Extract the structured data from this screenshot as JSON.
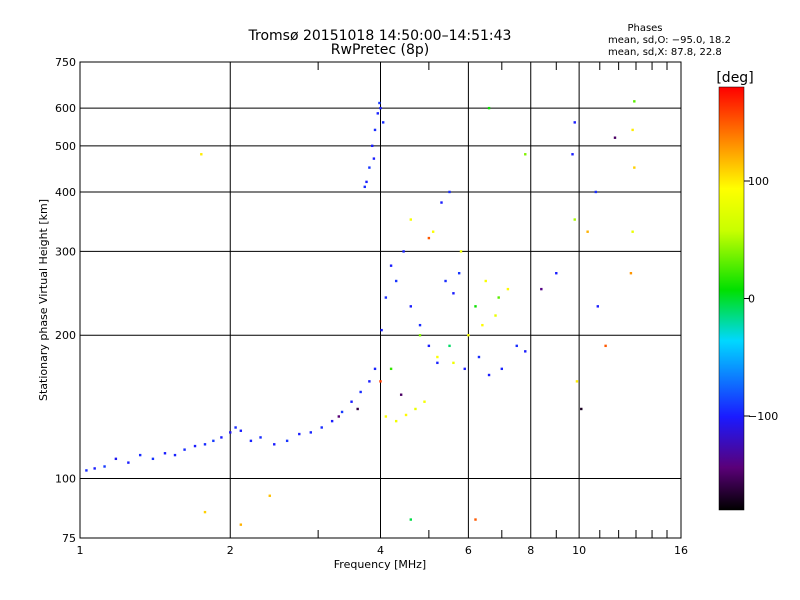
{
  "chart_data": {
    "type": "scatter",
    "title": "Tromsø 20151018 14:50:00–14:51:43",
    "subtitle": "RwPretec (8p)",
    "xlabel": "Frequency [MHz]",
    "ylabel": "Stationary phase Virtual Height [km]",
    "x_scale": "log",
    "y_scale": "log",
    "xlim": [
      1,
      16
    ],
    "ylim": [
      75,
      750
    ],
    "grid": true,
    "x_major_ticks": [
      {
        "value": 1,
        "label": "1"
      },
      {
        "value": 2,
        "label": "2"
      },
      {
        "value": 4,
        "label": "4"
      },
      {
        "value": 6,
        "label": "6"
      },
      {
        "value": 8,
        "label": "8"
      },
      {
        "value": 10,
        "label": "10"
      },
      {
        "value": 16,
        "label": "16"
      }
    ],
    "x_minor_ticks": [
      3,
      5,
      7,
      9,
      11,
      12,
      13,
      14,
      15
    ],
    "y_major_ticks": [
      {
        "value": 75,
        "label": "75"
      },
      {
        "value": 100,
        "label": "100"
      },
      {
        "value": 200,
        "label": "200"
      },
      {
        "value": 300,
        "label": "300"
      },
      {
        "value": 400,
        "label": "400"
      },
      {
        "value": 500,
        "label": "500"
      },
      {
        "value": 600,
        "label": "600"
      },
      {
        "value": 750,
        "label": "750"
      }
    ],
    "phase_legend": {
      "heading": "Phases",
      "line1": "mean, sd,O: −95.0, 18.2",
      "line2": "mean, sd,X:  87.8, 22.8"
    },
    "colorbar": {
      "label": "[deg]",
      "min": -180,
      "max": 180,
      "ticks": [
        {
          "value": 100,
          "label": "100"
        },
        {
          "value": 0,
          "label": "0"
        },
        {
          "value": -100,
          "label": "−100"
        }
      ]
    },
    "points": [
      [
        1.03,
        104,
        -95
      ],
      [
        1.07,
        105,
        -100
      ],
      [
        1.12,
        106,
        -90
      ],
      [
        1.18,
        110,
        -105
      ],
      [
        1.25,
        108,
        -100
      ],
      [
        1.32,
        112,
        -95
      ],
      [
        1.4,
        110,
        -92
      ],
      [
        1.48,
        113,
        -100
      ],
      [
        1.55,
        112,
        -98
      ],
      [
        1.62,
        115,
        -95
      ],
      [
        1.7,
        117,
        -100
      ],
      [
        1.78,
        118,
        -95
      ],
      [
        1.85,
        120,
        -90
      ],
      [
        1.92,
        122,
        -100
      ],
      [
        2.0,
        125,
        -105
      ],
      [
        2.05,
        128,
        -95
      ],
      [
        2.1,
        126,
        -100
      ],
      [
        2.2,
        120,
        -98
      ],
      [
        2.3,
        122,
        -95
      ],
      [
        2.45,
        118,
        -100
      ],
      [
        2.6,
        120,
        -92
      ],
      [
        2.75,
        124,
        -100
      ],
      [
        2.9,
        125,
        -97
      ],
      [
        3.05,
        128,
        -95
      ],
      [
        3.2,
        132,
        -100
      ],
      [
        3.35,
        138,
        -90
      ],
      [
        3.5,
        145,
        -100
      ],
      [
        3.65,
        152,
        -95
      ],
      [
        3.8,
        160,
        -100
      ],
      [
        3.9,
        170,
        -98
      ],
      [
        3.72,
        410,
        -95
      ],
      [
        3.75,
        420,
        -100
      ],
      [
        3.8,
        450,
        -92
      ],
      [
        3.85,
        500,
        -100
      ],
      [
        3.9,
        540,
        -95
      ],
      [
        3.95,
        585,
        -98
      ],
      [
        4.0,
        600,
        -100
      ],
      [
        4.05,
        560,
        -95
      ],
      [
        3.88,
        470,
        -100
      ],
      [
        3.98,
        615,
        -90
      ],
      [
        4.02,
        205,
        -100
      ],
      [
        4.1,
        240,
        -95
      ],
      [
        4.2,
        280,
        -100
      ],
      [
        4.3,
        260,
        -92
      ],
      [
        4.45,
        300,
        -98
      ],
      [
        4.6,
        230,
        -100
      ],
      [
        4.8,
        210,
        -95
      ],
      [
        5.0,
        190,
        -100
      ],
      [
        5.2,
        175,
        -98
      ],
      [
        5.4,
        260,
        -95
      ],
      [
        5.6,
        245,
        -100
      ],
      [
        5.75,
        270,
        -92
      ],
      [
        5.9,
        170,
        -100
      ],
      [
        6.3,
        180,
        -95
      ],
      [
        6.6,
        165,
        -100
      ],
      [
        7.0,
        170,
        -98
      ],
      [
        7.5,
        190,
        -95
      ],
      [
        7.8,
        185,
        -100
      ],
      [
        5.5,
        400,
        -95
      ],
      [
        5.3,
        380,
        -100
      ],
      [
        4.1,
        135,
        90
      ],
      [
        4.3,
        132,
        85
      ],
      [
        4.5,
        136,
        95
      ],
      [
        4.7,
        140,
        80
      ],
      [
        4.9,
        145,
        88
      ],
      [
        5.2,
        180,
        92
      ],
      [
        5.6,
        175,
        85
      ],
      [
        6.0,
        200,
        90
      ],
      [
        6.4,
        210,
        95
      ],
      [
        6.8,
        220,
        80
      ],
      [
        4.6,
        350,
        88
      ],
      [
        5.1,
        330,
        92
      ],
      [
        5.8,
        300,
        85
      ],
      [
        6.5,
        260,
        90
      ],
      [
        7.2,
        250,
        95
      ],
      [
        4.2,
        170,
        20
      ],
      [
        4.8,
        200,
        40
      ],
      [
        5.5,
        190,
        -10
      ],
      [
        6.2,
        230,
        10
      ],
      [
        6.9,
        240,
        30
      ],
      [
        4.0,
        160,
        160
      ],
      [
        4.4,
        150,
        -150
      ],
      [
        5.0,
        320,
        150
      ],
      [
        3.6,
        140,
        -160
      ],
      [
        3.3,
        135,
        -145
      ],
      [
        9.8,
        560,
        -100
      ],
      [
        10.8,
        400,
        -95
      ],
      [
        11.8,
        520,
        -150
      ],
      [
        12.9,
        620,
        30
      ],
      [
        12.8,
        540,
        100
      ],
      [
        12.9,
        450,
        110
      ],
      [
        10.4,
        330,
        120
      ],
      [
        10.9,
        230,
        -100
      ],
      [
        11.3,
        190,
        150
      ],
      [
        9.9,
        160,
        100
      ],
      [
        8.4,
        250,
        -140
      ],
      [
        9.0,
        270,
        -100
      ],
      [
        12.8,
        330,
        80
      ],
      [
        12.7,
        270,
        130
      ],
      [
        10.1,
        140,
        -170
      ],
      [
        1.75,
        480,
        100
      ],
      [
        1.78,
        85,
        110
      ],
      [
        2.1,
        80,
        120
      ],
      [
        2.4,
        92,
        115
      ],
      [
        4.6,
        82,
        -5
      ],
      [
        6.2,
        82,
        150
      ],
      [
        7.8,
        480,
        40
      ],
      [
        6.6,
        600,
        10
      ],
      [
        9.7,
        480,
        -100
      ],
      [
        9.8,
        350,
        50
      ]
    ]
  }
}
